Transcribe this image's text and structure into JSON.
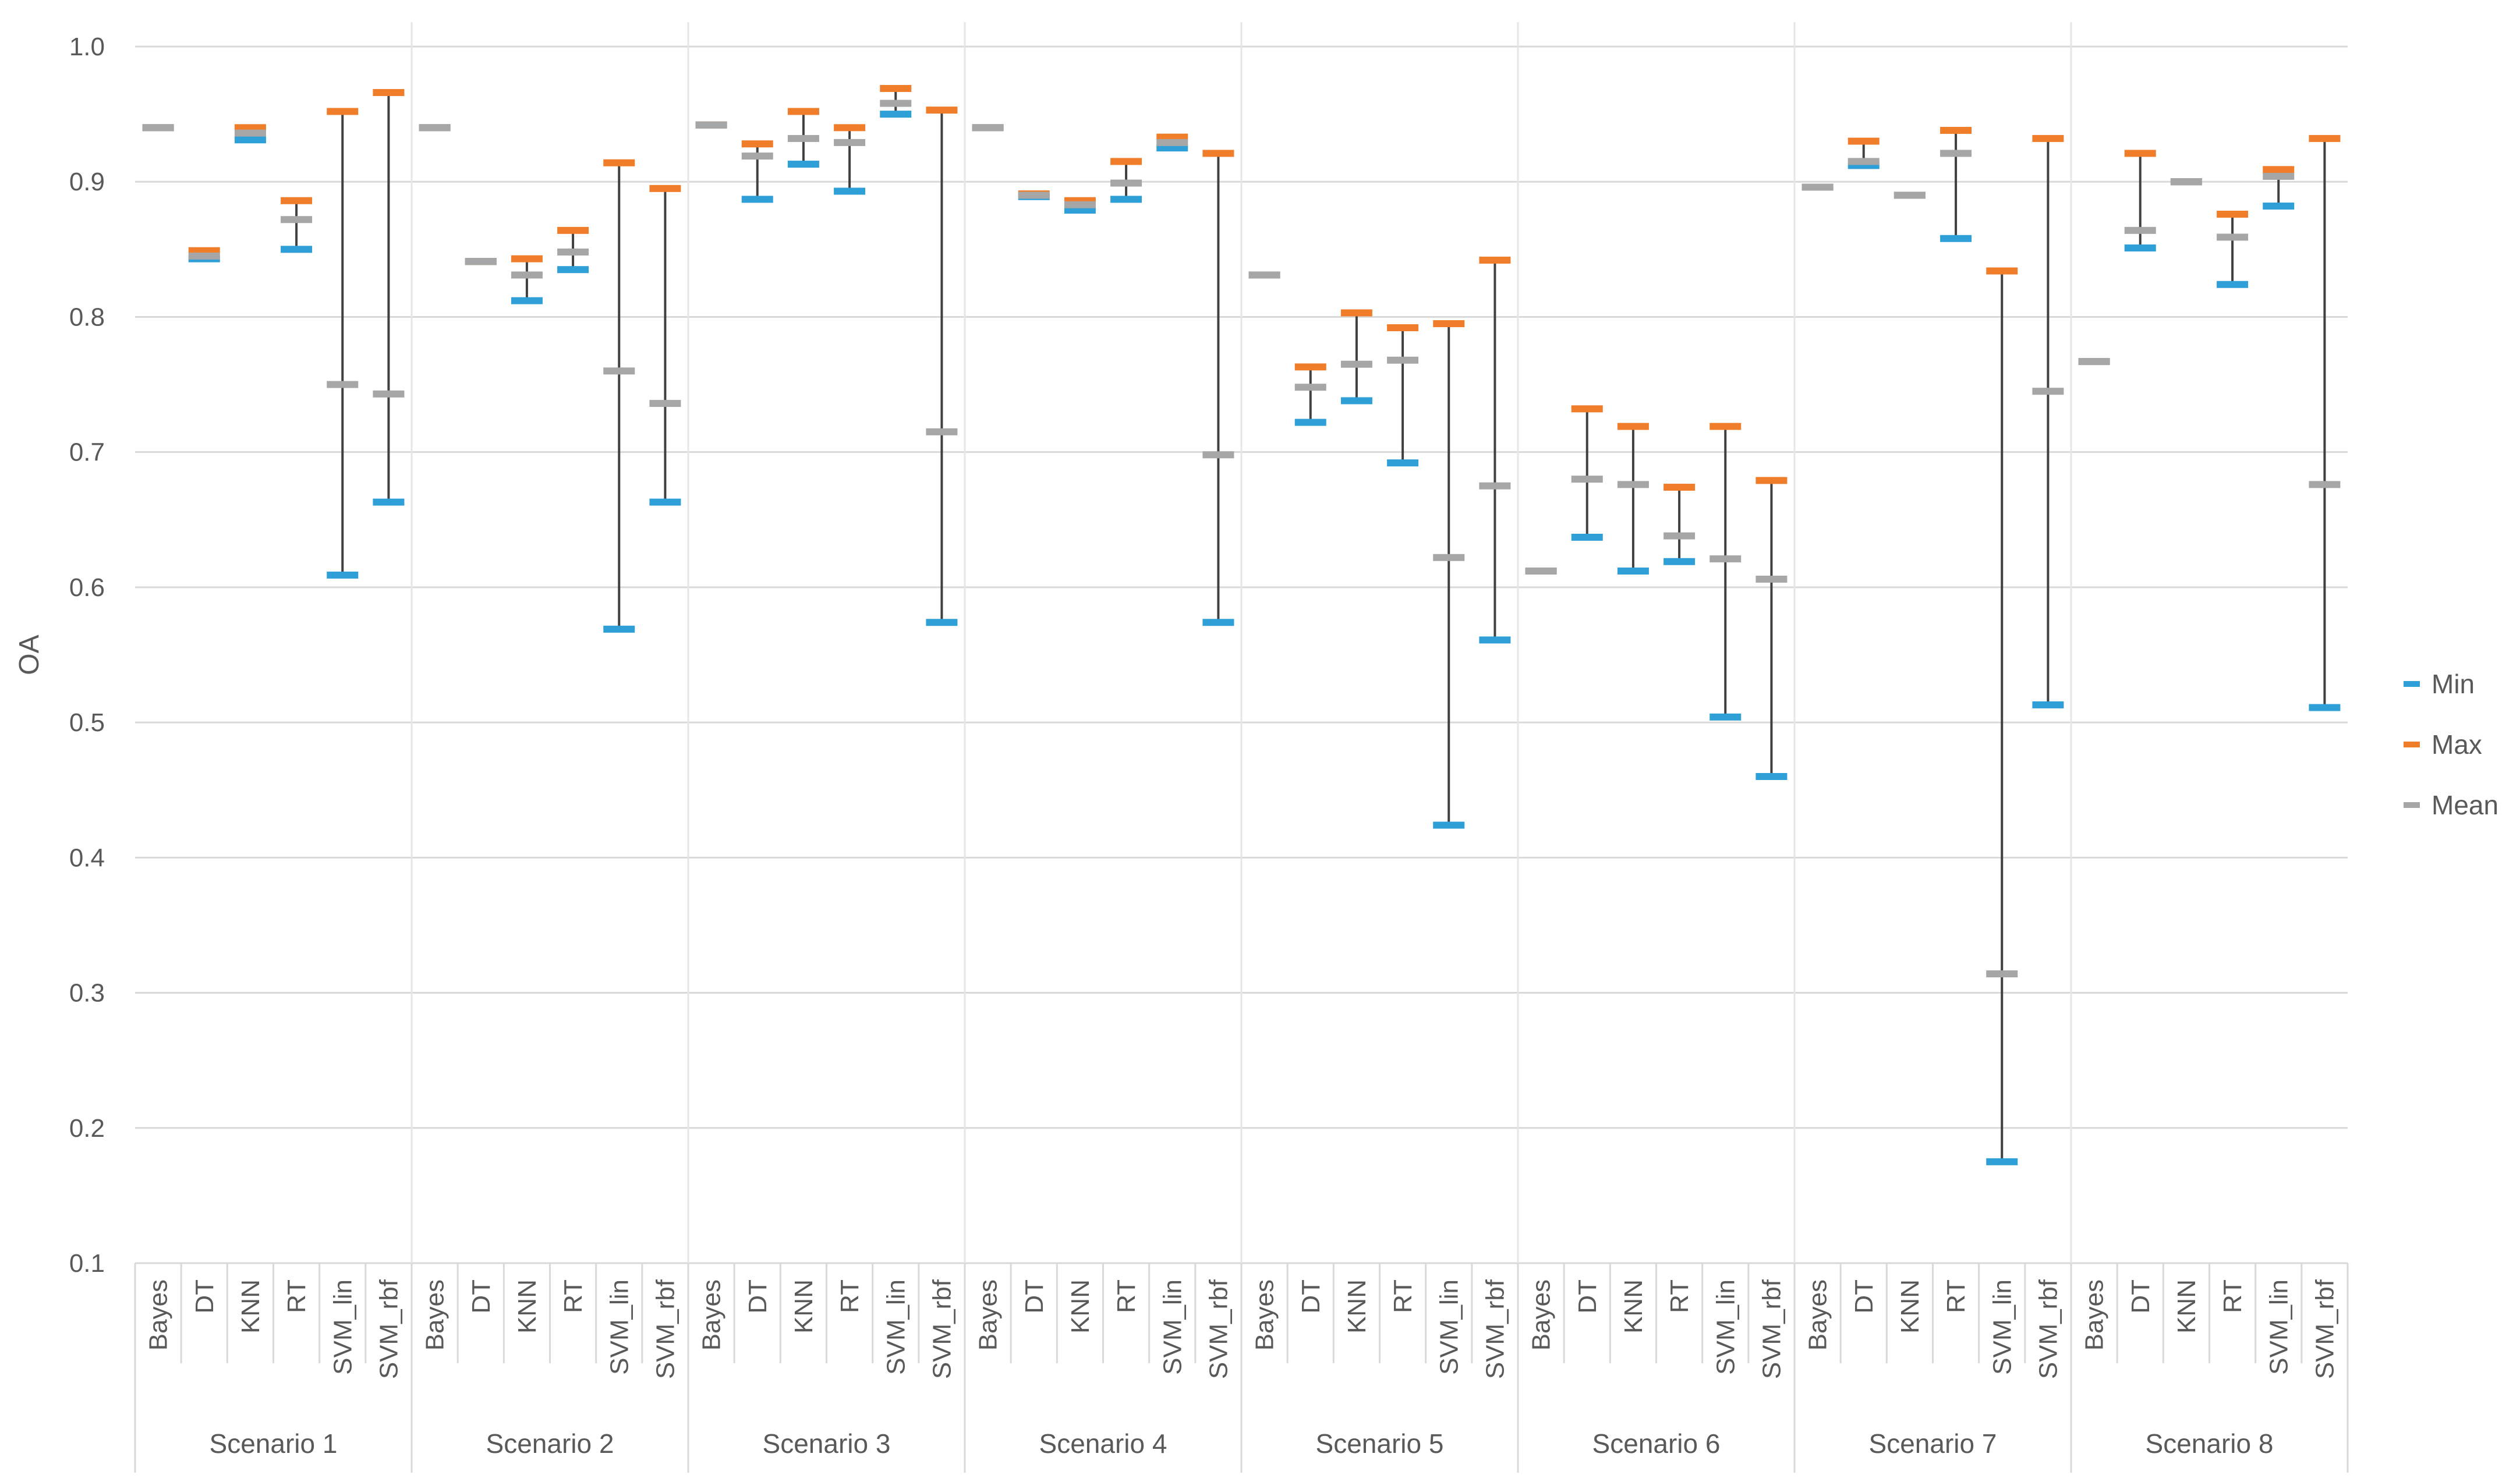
{
  "chart_data": {
    "type": "stock",
    "title": "",
    "ylabel": "OA",
    "xlabel": "",
    "ylim": [
      0.1,
      1.0
    ],
    "yticks": [
      "0.1",
      "0.2",
      "0.3",
      "0.4",
      "0.5",
      "0.6",
      "0.7",
      "0.8",
      "0.9",
      "1.0"
    ],
    "grid": true,
    "legend_position": "right",
    "methods": [
      "Bayes",
      "DT",
      "KNN",
      "RT",
      "SVM_lin",
      "SVM_rbf"
    ],
    "series_names": {
      "min": "Min",
      "max": "Max",
      "mean": "Mean"
    },
    "colors": {
      "min": "#2f9fd8",
      "max": "#f07d2a",
      "mean": "#a6a6a6",
      "whisker": "#404040",
      "grid": "#d9d9d9",
      "text": "#595959"
    },
    "groups": [
      {
        "name": "Scenario 1",
        "points": [
          {
            "method": "Bayes",
            "min": 0.94,
            "max": 0.94,
            "mean": 0.94
          },
          {
            "method": "DT",
            "min": 0.843,
            "max": 0.849,
            "mean": 0.845
          },
          {
            "method": "KNN",
            "min": 0.931,
            "max": 0.94,
            "mean": 0.936
          },
          {
            "method": "RT",
            "min": 0.85,
            "max": 0.886,
            "mean": 0.872
          },
          {
            "method": "SVM_lin",
            "min": 0.609,
            "max": 0.952,
            "mean": 0.75
          },
          {
            "method": "SVM_rbf",
            "min": 0.663,
            "max": 0.966,
            "mean": 0.743
          }
        ]
      },
      {
        "name": "Scenario 2",
        "points": [
          {
            "method": "Bayes",
            "min": 0.94,
            "max": 0.94,
            "mean": 0.94
          },
          {
            "method": "DT",
            "min": 0.841,
            "max": 0.841,
            "mean": 0.841
          },
          {
            "method": "KNN",
            "min": 0.812,
            "max": 0.843,
            "mean": 0.831
          },
          {
            "method": "RT",
            "min": 0.835,
            "max": 0.864,
            "mean": 0.848
          },
          {
            "method": "SVM_lin",
            "min": 0.569,
            "max": 0.914,
            "mean": 0.76
          },
          {
            "method": "SVM_rbf",
            "min": 0.663,
            "max": 0.895,
            "mean": 0.736
          }
        ]
      },
      {
        "name": "Scenario 3",
        "points": [
          {
            "method": "Bayes",
            "min": 0.942,
            "max": 0.942,
            "mean": 0.942
          },
          {
            "method": "DT",
            "min": 0.887,
            "max": 0.928,
            "mean": 0.919
          },
          {
            "method": "KNN",
            "min": 0.913,
            "max": 0.952,
            "mean": 0.932
          },
          {
            "method": "RT",
            "min": 0.893,
            "max": 0.94,
            "mean": 0.929
          },
          {
            "method": "SVM_lin",
            "min": 0.95,
            "max": 0.969,
            "mean": 0.958
          },
          {
            "method": "SVM_rbf",
            "min": 0.574,
            "max": 0.953,
            "mean": 0.715
          }
        ]
      },
      {
        "name": "Scenario 4",
        "points": [
          {
            "method": "Bayes",
            "min": 0.94,
            "max": 0.94,
            "mean": 0.94
          },
          {
            "method": "DT",
            "min": 0.889,
            "max": 0.891,
            "mean": 0.89
          },
          {
            "method": "KNN",
            "min": 0.879,
            "max": 0.886,
            "mean": 0.883
          },
          {
            "method": "RT",
            "min": 0.887,
            "max": 0.915,
            "mean": 0.899
          },
          {
            "method": "SVM_lin",
            "min": 0.925,
            "max": 0.933,
            "mean": 0.929
          },
          {
            "method": "SVM_rbf",
            "min": 0.574,
            "max": 0.921,
            "mean": 0.698
          }
        ]
      },
      {
        "name": "Scenario 5",
        "points": [
          {
            "method": "Bayes",
            "min": 0.831,
            "max": 0.831,
            "mean": 0.831
          },
          {
            "method": "DT",
            "min": 0.722,
            "max": 0.763,
            "mean": 0.748
          },
          {
            "method": "KNN",
            "min": 0.738,
            "max": 0.803,
            "mean": 0.765
          },
          {
            "method": "RT",
            "min": 0.692,
            "max": 0.792,
            "mean": 0.768
          },
          {
            "method": "SVM_lin",
            "min": 0.424,
            "max": 0.795,
            "mean": 0.622
          },
          {
            "method": "SVM_rbf",
            "min": 0.561,
            "max": 0.842,
            "mean": 0.675
          }
        ]
      },
      {
        "name": "Scenario 6",
        "points": [
          {
            "method": "Bayes",
            "min": 0.612,
            "max": 0.612,
            "mean": 0.612
          },
          {
            "method": "DT",
            "min": 0.637,
            "max": 0.732,
            "mean": 0.68
          },
          {
            "method": "KNN",
            "min": 0.612,
            "max": 0.719,
            "mean": 0.676
          },
          {
            "method": "RT",
            "min": 0.619,
            "max": 0.674,
            "mean": 0.638
          },
          {
            "method": "SVM_lin",
            "min": 0.504,
            "max": 0.719,
            "mean": 0.621
          },
          {
            "method": "SVM_rbf",
            "min": 0.46,
            "max": 0.679,
            "mean": 0.606
          }
        ]
      },
      {
        "name": "Scenario 7",
        "points": [
          {
            "method": "Bayes",
            "min": 0.896,
            "max": 0.896,
            "mean": 0.896
          },
          {
            "method": "DT",
            "min": 0.912,
            "max": 0.93,
            "mean": 0.915
          },
          {
            "method": "KNN",
            "min": 0.89,
            "max": 0.89,
            "mean": 0.89
          },
          {
            "method": "RT",
            "min": 0.858,
            "max": 0.938,
            "mean": 0.921
          },
          {
            "method": "SVM_lin",
            "min": 0.175,
            "max": 0.834,
            "mean": 0.314
          },
          {
            "method": "SVM_rbf",
            "min": 0.513,
            "max": 0.932,
            "mean": 0.745
          }
        ]
      },
      {
        "name": "Scenario 8",
        "points": [
          {
            "method": "Bayes",
            "min": 0.767,
            "max": 0.767,
            "mean": 0.767
          },
          {
            "method": "DT",
            "min": 0.851,
            "max": 0.921,
            "mean": 0.864
          },
          {
            "method": "KNN",
            "min": 0.9,
            "max": 0.9,
            "mean": 0.9
          },
          {
            "method": "RT",
            "min": 0.824,
            "max": 0.876,
            "mean": 0.859
          },
          {
            "method": "SVM_lin",
            "min": 0.882,
            "max": 0.909,
            "mean": 0.904
          },
          {
            "method": "SVM_rbf",
            "min": 0.511,
            "max": 0.932,
            "mean": 0.676
          }
        ]
      }
    ]
  }
}
